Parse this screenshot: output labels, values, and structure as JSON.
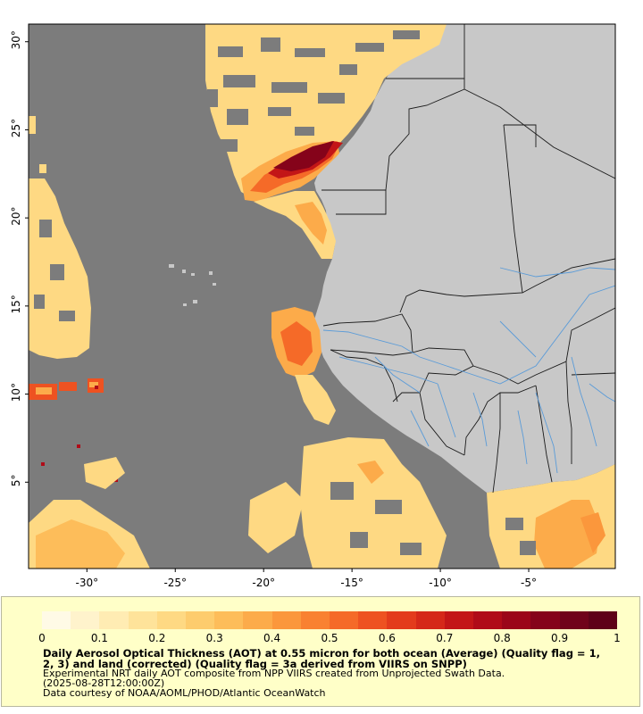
{
  "map": {
    "x_axis_labels": [
      "-30°",
      "-25°",
      "-20°",
      "-15°",
      "-10°",
      "-5°"
    ],
    "y_axis_labels": [
      "30°",
      "25°",
      "20°",
      "15°",
      "10°",
      "5°"
    ],
    "extent_lon": [
      -33.3,
      -0.1
    ],
    "extent_lat": [
      0.1,
      31.0
    ],
    "colors": {
      "ocean_no_data": "#7c7c7c",
      "land": "#c8c8c8",
      "borders": "#1a1a1a",
      "rivers": "#5a9bd8"
    }
  },
  "legend": {
    "tick_labels": [
      "0",
      "0.1",
      "0.2",
      "0.3",
      "0.4",
      "0.5",
      "0.6",
      "0.7",
      "0.8",
      "0.9",
      "1"
    ],
    "title": "Daily Aerosol Optical Thickness (AOT) at 0.55 micron for both ocean (Average) (Quality flag = 1, 2, 3) and land (corrected) (Quality flag = 3a derived from VIIRS on SNPP)",
    "line1": "Experimental NRT daily AOT composite from NPP VIIRS created from Unprojected Swath Data.",
    "line2": "(2025-08-28T12:00:00Z)",
    "line3": "Data courtesy of NOAA/AOML/PHOD/Atlantic OceanWatch",
    "colorbar_colors": [
      "#fffae6",
      "#fff3cc",
      "#ffecb3",
      "#fee39a",
      "#fed983",
      "#fdcc6d",
      "#fdbd5a",
      "#fcab4a",
      "#fb973c",
      "#f98131",
      "#f56a28",
      "#ee5221",
      "#e33b1c",
      "#d52819",
      "#c31617",
      "#b00b18",
      "#9b0519",
      "#85031a",
      "#70021a",
      "#5e0118"
    ]
  }
}
